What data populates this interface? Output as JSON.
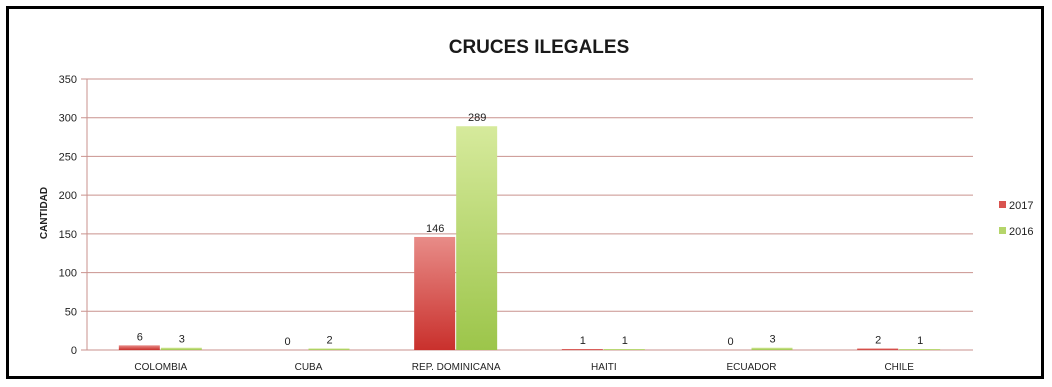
{
  "chart_data": {
    "type": "bar",
    "title": "CRUCES ILEGALES",
    "xlabel": "",
    "ylabel": "CANTIDAD",
    "ylim": [
      0,
      350
    ],
    "yticks": [
      0,
      50,
      100,
      150,
      200,
      250,
      300,
      350
    ],
    "grid": true,
    "legend_position": "right",
    "categories": [
      "COLOMBIA",
      "CUBA",
      "REP. DOMINICANA",
      "HAITI",
      "ECUADOR",
      "CHILE"
    ],
    "series": [
      {
        "name": "2017",
        "values": [
          6,
          0,
          146,
          1,
          0,
          2
        ],
        "color": "#d9534f"
      },
      {
        "name": "2016",
        "values": [
          3,
          2,
          289,
          1,
          3,
          1
        ],
        "color": "#b5d56a"
      }
    ]
  },
  "colors": {
    "gridline": "#c9928e",
    "axis": "#c9928e",
    "frame": "#000000"
  }
}
